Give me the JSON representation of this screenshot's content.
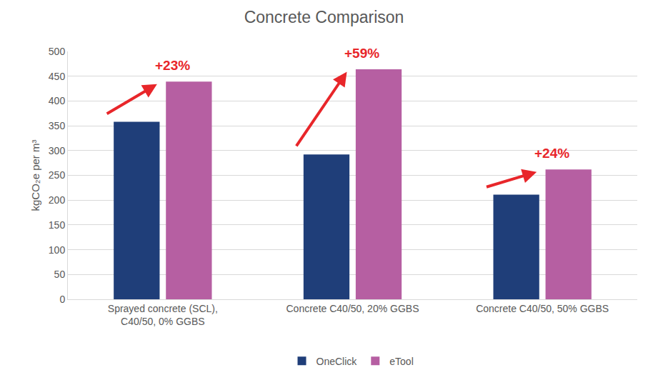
{
  "chart_data": {
    "type": "bar",
    "title": "Concrete Comparison",
    "y_label": "kgCO₂e per m³",
    "categories": [
      "Sprayed concrete (SCL), C40/50, 0% GGBS",
      "Concrete C40/50, 20% GGBS",
      "Concrete C40/50, 50% GGBS"
    ],
    "series": [
      {
        "name": "OneClick",
        "color": "#1f3e79",
        "values": [
          358,
          292,
          211
        ]
      },
      {
        "name": "eTool",
        "color": "#b65fa2",
        "values": [
          439,
          464,
          262
        ]
      }
    ],
    "annotations": [
      "+23%",
      "+59%",
      "+24%"
    ],
    "ylim": [
      0,
      500
    ],
    "yticks": [
      0,
      50,
      100,
      150,
      200,
      250,
      300,
      350,
      400,
      450,
      500
    ],
    "grid": true,
    "legend": "bottom"
  }
}
